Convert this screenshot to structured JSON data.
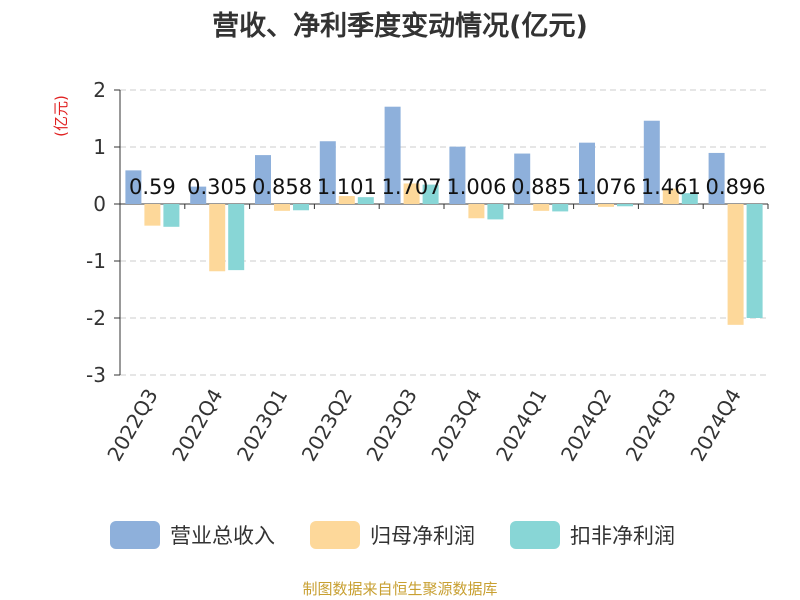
{
  "title": "营收、净利季度变动情况(亿元)",
  "source": "制图数据来自恒生聚源数据库",
  "chart_data": {
    "type": "bar",
    "title": "营收、净利季度变动情况(亿元)",
    "ylabel": "(亿元)",
    "ylim": [
      -3,
      2
    ],
    "yticks": [
      2,
      1,
      0,
      -1,
      -2,
      -3
    ],
    "grid": true,
    "legend_position": "bottom",
    "categories": [
      "2022Q3",
      "2022Q4",
      "2023Q1",
      "2023Q2",
      "2023Q3",
      "2023Q4",
      "2024Q1",
      "2024Q2",
      "2024Q3",
      "2024Q4"
    ],
    "series": [
      {
        "name": "营业总收入",
        "color": "#8eb0db",
        "values": [
          0.59,
          0.305,
          0.858,
          1.101,
          1.707,
          1.006,
          0.885,
          1.076,
          1.461,
          0.896
        ],
        "labels": [
          "0.59",
          "0.305",
          "0.858",
          "1.101",
          "1.707",
          "1.006",
          "0.885",
          "1.076",
          "1.461",
          "0.896"
        ]
      },
      {
        "name": "归母净利润",
        "color": "#fdd89a",
        "values": [
          -0.38,
          -1.18,
          -0.12,
          0.14,
          0.36,
          -0.25,
          -0.12,
          -0.05,
          0.27,
          -2.12
        ]
      },
      {
        "name": "扣非净利润",
        "color": "#88d6d6",
        "values": [
          -0.4,
          -1.16,
          -0.11,
          0.12,
          0.34,
          -0.27,
          -0.13,
          -0.04,
          0.19,
          -2.0
        ]
      }
    ]
  }
}
